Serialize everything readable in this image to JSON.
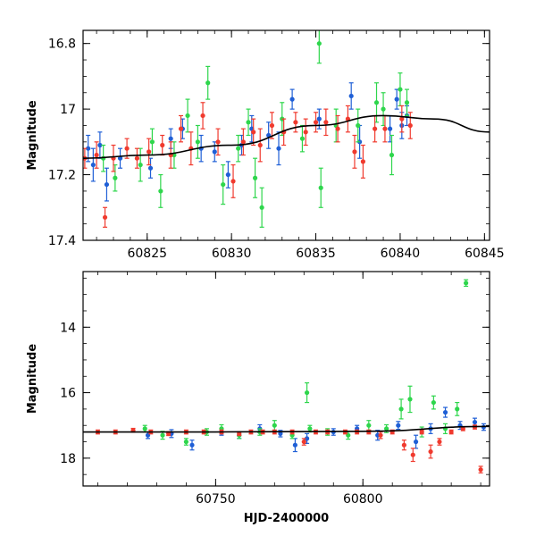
{
  "chart_data": [
    {
      "type": "scatter",
      "ylabel": "Magnitude",
      "xlabel": "",
      "xlim": [
        60821.2,
        60845.3
      ],
      "ylim": [
        16.76,
        17.4
      ],
      "y_inverted": true,
      "xticks": [
        60825,
        60830,
        60835,
        60840,
        60845
      ],
      "xtick_labels": [
        "60825",
        "60830",
        "60835",
        "60840",
        "60845"
      ],
      "yticks": [
        16.8,
        17,
        17.2,
        17.4
      ],
      "ytick_labels": [
        "16.8",
        "17",
        "17.2",
        "17.4"
      ],
      "grid": false,
      "legend": "none",
      "colors": {
        "series1": "#1f5fd6",
        "series2": "#2ed64c",
        "series3": "#f03a2e",
        "model": "#000000"
      },
      "model_curve": {
        "x": [
          60821.2,
          60825,
          60830,
          60835,
          60839,
          60842,
          60845.3
        ],
        "y": [
          17.15,
          17.14,
          17.11,
          17.05,
          17.02,
          17.03,
          17.07
        ]
      },
      "series": [
        {
          "color_key": "series1",
          "x": [
            60821.5,
            60821.8,
            60822.2,
            60822.6,
            60823.4,
            60825.2,
            60826.4,
            60827.1,
            60828.2,
            60829.0,
            60829.8,
            60830.6,
            60831.2,
            60832.2,
            60832.8,
            60833.6,
            60835.2,
            60837.1,
            60837.6,
            60839.4,
            60839.8,
            60840.1,
            60840.4
          ],
          "y": [
            17.12,
            17.17,
            17.11,
            17.23,
            17.15,
            17.18,
            17.09,
            17.06,
            17.12,
            17.13,
            17.2,
            17.11,
            17.06,
            17.08,
            17.12,
            16.97,
            17.03,
            16.96,
            17.1,
            17.06,
            16.97,
            17.05,
            17.02
          ],
          "err": [
            0.04,
            0.05,
            0.04,
            0.05,
            0.03,
            0.03,
            0.03,
            0.03,
            0.04,
            0.03,
            0.04,
            0.03,
            0.04,
            0.04,
            0.05,
            0.03,
            0.03,
            0.04,
            0.05,
            0.04,
            0.03,
            0.04,
            0.03
          ]
        },
        {
          "color_key": "series2",
          "x": [
            60822.4,
            60823.1,
            60824.6,
            60825.3,
            60825.8,
            60826.6,
            60827.4,
            60828.0,
            60828.6,
            60829.5,
            60830.4,
            60831.0,
            60831.4,
            60831.8,
            60833.0,
            60834.2,
            60835.2,
            60835.3,
            60836.2,
            60837.5,
            60838.6,
            60839.0,
            60839.5,
            60840.0,
            60840.4
          ],
          "y": [
            17.15,
            17.21,
            17.17,
            17.1,
            17.25,
            17.14,
            17.02,
            17.1,
            16.92,
            17.23,
            17.12,
            17.04,
            17.21,
            17.3,
            17.03,
            17.09,
            16.8,
            17.24,
            17.05,
            17.05,
            16.98,
            17.0,
            17.14,
            16.94,
            16.98
          ],
          "err": [
            0.04,
            0.04,
            0.05,
            0.04,
            0.05,
            0.04,
            0.05,
            0.05,
            0.05,
            0.06,
            0.04,
            0.04,
            0.06,
            0.06,
            0.05,
            0.04,
            0.06,
            0.06,
            0.05,
            0.05,
            0.06,
            0.05,
            0.06,
            0.05,
            0.04
          ]
        },
        {
          "color_key": "series3",
          "x": [
            60821.3,
            60822.0,
            60822.5,
            60823.0,
            60823.8,
            60824.4,
            60825.1,
            60825.9,
            60826.4,
            60827.0,
            60827.6,
            60828.3,
            60829.2,
            60830.1,
            60830.7,
            60831.3,
            60831.7,
            60832.4,
            60833.1,
            60833.8,
            60834.4,
            60835.0,
            60835.6,
            60836.3,
            60836.9,
            60837.3,
            60837.8,
            60838.5,
            60839.1,
            60840.1,
            60840.6
          ],
          "y": [
            17.15,
            17.14,
            17.33,
            17.15,
            17.12,
            17.15,
            17.13,
            17.11,
            17.14,
            17.06,
            17.12,
            17.02,
            17.1,
            17.22,
            17.1,
            17.07,
            17.11,
            17.05,
            17.07,
            17.04,
            17.07,
            17.04,
            17.04,
            17.06,
            17.03,
            17.13,
            17.16,
            17.06,
            17.06,
            17.03,
            17.05
          ],
          "err": [
            0.03,
            0.04,
            0.03,
            0.04,
            0.03,
            0.03,
            0.04,
            0.03,
            0.04,
            0.04,
            0.05,
            0.04,
            0.04,
            0.05,
            0.04,
            0.04,
            0.05,
            0.04,
            0.04,
            0.03,
            0.04,
            0.03,
            0.04,
            0.04,
            0.04,
            0.05,
            0.05,
            0.04,
            0.04,
            0.04,
            0.04
          ]
        }
      ]
    },
    {
      "type": "scatter",
      "ylabel": "Magnitude",
      "xlabel": "HJD-2400000",
      "xlim": [
        60705,
        60843
      ],
      "ylim": [
        12.3,
        18.85
      ],
      "y_inverted": true,
      "xticks": [
        60750,
        60800
      ],
      "xtick_labels": [
        "60750",
        "60800"
      ],
      "yticks": [
        14,
        16,
        18
      ],
      "ytick_labels": [
        "14",
        "16",
        "18"
      ],
      "grid": false,
      "legend": "none",
      "colors": {
        "series1": "#1f5fd6",
        "series2": "#2ed64c",
        "series3": "#f03a2e",
        "model": "#000000"
      },
      "model_curve": {
        "x": [
          60705,
          60750,
          60800,
          60843
        ],
        "y": [
          17.2,
          17.2,
          17.18,
          17.03
        ]
      },
      "series": [
        {
          "color_key": "series1",
          "x": [
            60727,
            60735,
            60742,
            60752,
            60758,
            60765,
            60772,
            60777,
            60781,
            60790,
            60798,
            60805,
            60812,
            60818,
            60823,
            60828,
            60833,
            60838,
            60841
          ],
          "y": [
            17.3,
            17.25,
            17.6,
            17.2,
            17.3,
            17.1,
            17.25,
            17.6,
            17.4,
            17.2,
            17.1,
            17.3,
            17.0,
            17.5,
            17.1,
            16.6,
            17.0,
            16.9,
            17.05
          ],
          "err": [
            0.1,
            0.12,
            0.15,
            0.1,
            0.1,
            0.12,
            0.1,
            0.2,
            0.15,
            0.1,
            0.1,
            0.15,
            0.12,
            0.2,
            0.15,
            0.15,
            0.12,
            0.12,
            0.1
          ]
        },
        {
          "color_key": "series2",
          "x": [
            60726,
            60732,
            60740,
            60747,
            60752,
            60758,
            60765,
            60770,
            60776,
            60781,
            60782,
            60788,
            60795,
            60802,
            60808,
            60813,
            60816,
            60820,
            60824,
            60828,
            60832,
            60835
          ],
          "y": [
            17.1,
            17.3,
            17.5,
            17.2,
            17.1,
            17.3,
            17.2,
            17.0,
            17.3,
            16.0,
            17.1,
            17.2,
            17.3,
            17.0,
            17.1,
            16.5,
            16.2,
            17.2,
            16.3,
            17.1,
            16.5,
            12.65
          ],
          "err": [
            0.1,
            0.12,
            0.1,
            0.1,
            0.12,
            0.1,
            0.1,
            0.15,
            0.1,
            0.3,
            0.1,
            0.1,
            0.12,
            0.15,
            0.12,
            0.3,
            0.4,
            0.15,
            0.2,
            0.15,
            0.2,
            0.1
          ]
        },
        {
          "color_key": "series3",
          "x": [
            60710,
            60716,
            60722,
            60728,
            60734,
            60740,
            60746,
            60752,
            60758,
            60762,
            60766,
            60770,
            60776,
            60780,
            60784,
            60788,
            60794,
            60798,
            60802,
            60806,
            60810,
            60814,
            60817,
            60820,
            60823,
            60826,
            60830,
            60834,
            60838,
            60840
          ],
          "y": [
            17.2,
            17.2,
            17.15,
            17.2,
            17.25,
            17.2,
            17.2,
            17.2,
            17.25,
            17.2,
            17.2,
            17.2,
            17.2,
            17.5,
            17.2,
            17.2,
            17.2,
            17.2,
            17.2,
            17.3,
            17.2,
            17.6,
            17.9,
            17.2,
            17.8,
            17.5,
            17.2,
            17.1,
            17.05,
            18.35
          ],
          "err": [
            0.06,
            0.06,
            0.06,
            0.06,
            0.06,
            0.06,
            0.06,
            0.06,
            0.06,
            0.06,
            0.06,
            0.06,
            0.06,
            0.1,
            0.06,
            0.06,
            0.06,
            0.06,
            0.06,
            0.1,
            0.06,
            0.15,
            0.2,
            0.06,
            0.2,
            0.1,
            0.06,
            0.06,
            0.06,
            0.1
          ]
        }
      ]
    }
  ]
}
